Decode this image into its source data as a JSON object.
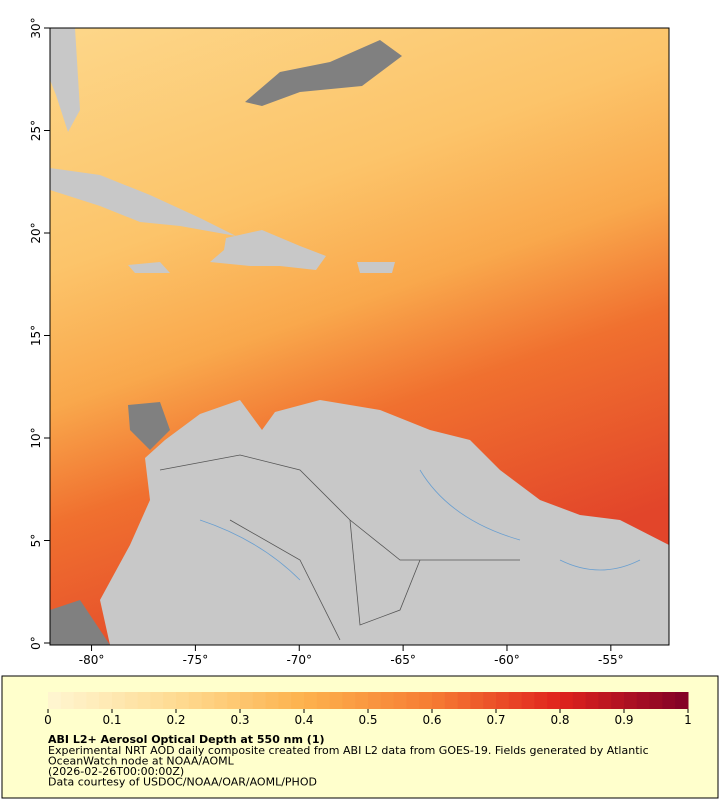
{
  "map": {
    "type": "map",
    "xlim": [
      -82,
      -52.2
    ],
    "ylim": [
      0,
      30
    ],
    "xticks": [
      {
        "value": -80,
        "label": "-80°"
      },
      {
        "value": -75,
        "label": "-75°"
      },
      {
        "value": -70,
        "label": "-70°"
      },
      {
        "value": -65,
        "label": "-65°"
      },
      {
        "value": -60,
        "label": "-60°"
      },
      {
        "value": -55,
        "label": "-55°"
      }
    ],
    "yticks": [
      {
        "value": 0,
        "label": "0°"
      },
      {
        "value": 5,
        "label": "5°"
      },
      {
        "value": 10,
        "label": "10°"
      },
      {
        "value": 15,
        "label": "15°"
      },
      {
        "value": 20,
        "label": "20°"
      },
      {
        "value": 25,
        "label": "25°"
      },
      {
        "value": 30,
        "label": "30°"
      }
    ]
  },
  "colorbar": {
    "lim": [
      0,
      1
    ],
    "ticks": [
      0,
      0.1,
      0.2,
      0.3,
      0.4,
      0.5,
      0.6,
      0.7,
      0.8,
      0.9,
      1
    ],
    "colors": [
      "#fff6d2",
      "#fedb92",
      "#fdb24d",
      "#f67c33",
      "#e0231d",
      "#800026"
    ],
    "steps": 50
  },
  "legend": {
    "title": "ABI L2+ Aerosol Optical Depth at 550 nm (1)",
    "lines": [
      "Experimental NRT AOD daily composite created from ABI L2 data from GOES-19. Fields generated by Atlantic",
      "OceanWatch node at NOAA/AOML",
      "(2026-02-26T00:00:00Z)",
      "Data courtesy of USDOC/NOAA/OAR/AOML/PHOD"
    ]
  }
}
